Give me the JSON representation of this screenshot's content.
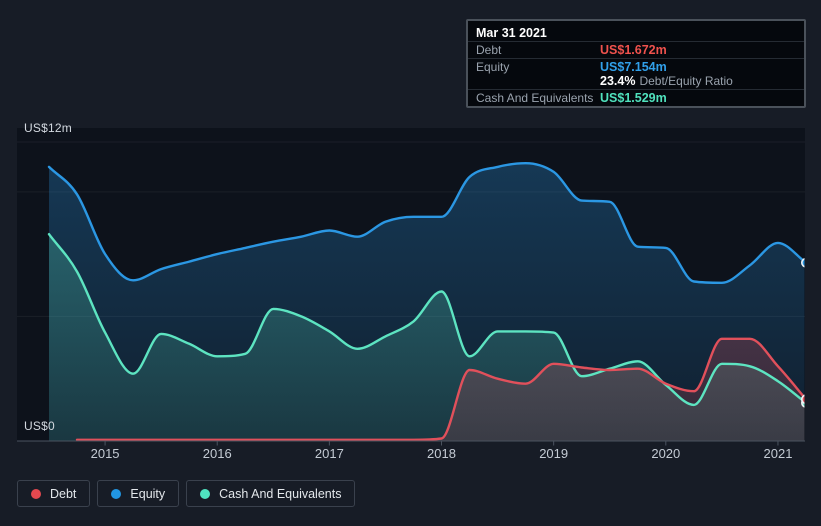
{
  "tooltip": {
    "date": "Mar 31 2021",
    "rows": [
      {
        "label": "Debt",
        "value": "US$1.672m",
        "color": "#ef524d"
      },
      {
        "label": "Equity",
        "value": "US$7.154m",
        "color": "#31a0ea"
      },
      {
        "label": "Cash And Equivalents",
        "value": "US$1.529m",
        "color": "#50e2bd"
      }
    ],
    "ratio_value": "23.4%",
    "ratio_label": "Debt/Equity Ratio"
  },
  "y_axis": {
    "top_label": "US$12m",
    "bottom_label": "US$0"
  },
  "x_axis": {
    "years": [
      "2015",
      "2016",
      "2017",
      "2018",
      "2019",
      "2020",
      "2021"
    ]
  },
  "legend": {
    "items": [
      {
        "label": "Debt",
        "color": "#e3484f"
      },
      {
        "label": "Equity",
        "color": "#2196e3"
      },
      {
        "label": "Cash And Equivalents",
        "color": "#4fe3c0"
      }
    ]
  },
  "chart_data": {
    "type": "area",
    "x_unit": "decimal_year",
    "y_unit": "US$ millions",
    "x_domain": [
      2014.5,
      2021.25
    ],
    "ylim": [
      0,
      12
    ],
    "gridline_values": [
      12,
      10,
      5
    ],
    "x": [
      2014.5,
      2014.75,
      2015,
      2015.25,
      2015.5,
      2015.75,
      2016,
      2016.25,
      2016.5,
      2016.75,
      2017,
      2017.25,
      2017.5,
      2017.75,
      2018,
      2018.25,
      2018.5,
      2018.75,
      2019,
      2019.25,
      2019.5,
      2019.75,
      2020,
      2020.25,
      2020.5,
      2020.75,
      2021,
      2021.25
    ],
    "series": [
      {
        "name": "Equity",
        "color": "#2b97e3",
        "values": [
          11.0,
          9.9,
          7.5,
          6.45,
          6.9,
          7.2,
          7.5,
          7.75,
          8.0,
          8.2,
          8.45,
          8.2,
          8.8,
          9.0,
          9.0,
          10.6,
          11.0,
          11.15,
          10.8,
          9.65,
          9.6,
          7.8,
          7.75,
          6.4,
          6.35,
          7.05,
          7.95,
          7.154
        ]
      },
      {
        "name": "Cash And Equivalents",
        "color": "#5de4c1",
        "values": [
          8.3,
          6.8,
          4.35,
          2.7,
          4.3,
          3.9,
          3.4,
          3.5,
          5.3,
          5.0,
          4.4,
          3.7,
          4.2,
          4.8,
          6.0,
          3.4,
          4.4,
          4.4,
          4.35,
          2.6,
          2.9,
          3.2,
          2.25,
          1.45,
          3.1,
          3.0,
          2.4,
          1.529
        ]
      },
      {
        "name": "Debt",
        "color": "#e1505b",
        "values": [
          null,
          0.05,
          0.05,
          0.05,
          0.05,
          0.05,
          0.05,
          0.05,
          0.05,
          0.05,
          0.05,
          0.05,
          0.05,
          0.05,
          0.1,
          2.85,
          2.5,
          2.3,
          3.1,
          2.95,
          2.85,
          2.9,
          2.3,
          2.0,
          4.1,
          4.1,
          3.0,
          1.672
        ]
      }
    ]
  }
}
